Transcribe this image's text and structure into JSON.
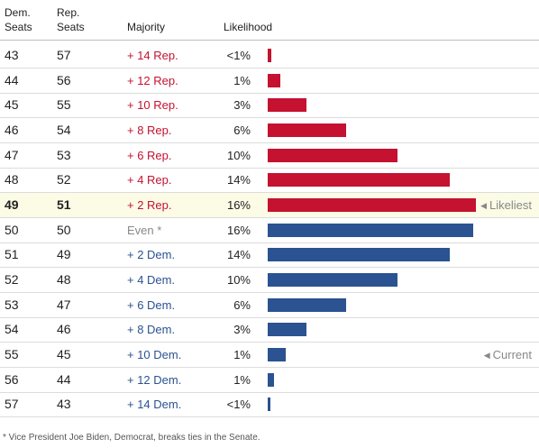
{
  "header": {
    "dem_seats": "Dem.\nSeats",
    "rep_seats": "Rep.\nSeats",
    "majority": "Majority",
    "likelihood": "Likelihood"
  },
  "chart_data": {
    "type": "table",
    "columns": [
      "Dem. Seats",
      "Rep. Seats",
      "Majority",
      "Likelihood"
    ],
    "colors": {
      "rep": "#c41230",
      "dem": "#2b5291",
      "even": "#2b5291",
      "highlight_bg": "#fbfbe6"
    },
    "bar_max_percent": 16,
    "rows": [
      {
        "dem": "43",
        "rep": "57",
        "majority": "+ 14 Rep.",
        "party": "rep",
        "likelihood": "<1%",
        "value": 0.3
      },
      {
        "dem": "44",
        "rep": "56",
        "majority": "+ 12 Rep.",
        "party": "rep",
        "likelihood": "1%",
        "value": 1
      },
      {
        "dem": "45",
        "rep": "55",
        "majority": "+ 10 Rep.",
        "party": "rep",
        "likelihood": "3%",
        "value": 3
      },
      {
        "dem": "46",
        "rep": "54",
        "majority": "+ 8 Rep.",
        "party": "rep",
        "likelihood": "6%",
        "value": 6
      },
      {
        "dem": "47",
        "rep": "53",
        "majority": "+ 6 Rep.",
        "party": "rep",
        "likelihood": "10%",
        "value": 10
      },
      {
        "dem": "48",
        "rep": "52",
        "majority": "+ 4 Rep.",
        "party": "rep",
        "likelihood": "14%",
        "value": 14
      },
      {
        "dem": "49",
        "rep": "51",
        "majority": "+ 2 Rep.",
        "party": "rep",
        "likelihood": "16%",
        "value": 16,
        "highlight": true,
        "note": "Likeliest"
      },
      {
        "dem": "50",
        "rep": "50",
        "majority": "Even *",
        "party": "even",
        "likelihood": "16%",
        "value": 15.8
      },
      {
        "dem": "51",
        "rep": "49",
        "majority": "+ 2 Dem.",
        "party": "dem",
        "likelihood": "14%",
        "value": 14
      },
      {
        "dem": "52",
        "rep": "48",
        "majority": "+ 4 Dem.",
        "party": "dem",
        "likelihood": "10%",
        "value": 10
      },
      {
        "dem": "53",
        "rep": "47",
        "majority": "+ 6 Dem.",
        "party": "dem",
        "likelihood": "6%",
        "value": 6
      },
      {
        "dem": "54",
        "rep": "46",
        "majority": "+ 8 Dem.",
        "party": "dem",
        "likelihood": "3%",
        "value": 3
      },
      {
        "dem": "55",
        "rep": "45",
        "majority": "+ 10 Dem.",
        "party": "dem",
        "likelihood": "1%",
        "value": 1.4,
        "note": "Current"
      },
      {
        "dem": "56",
        "rep": "44",
        "majority": "+ 12 Dem.",
        "party": "dem",
        "likelihood": "1%",
        "value": 0.5
      },
      {
        "dem": "57",
        "rep": "43",
        "majority": "+ 14 Dem.",
        "party": "dem",
        "likelihood": "<1%",
        "value": 0.2
      }
    ]
  },
  "footnote": "* Vice President Joe Biden, Democrat, breaks ties in the Senate."
}
